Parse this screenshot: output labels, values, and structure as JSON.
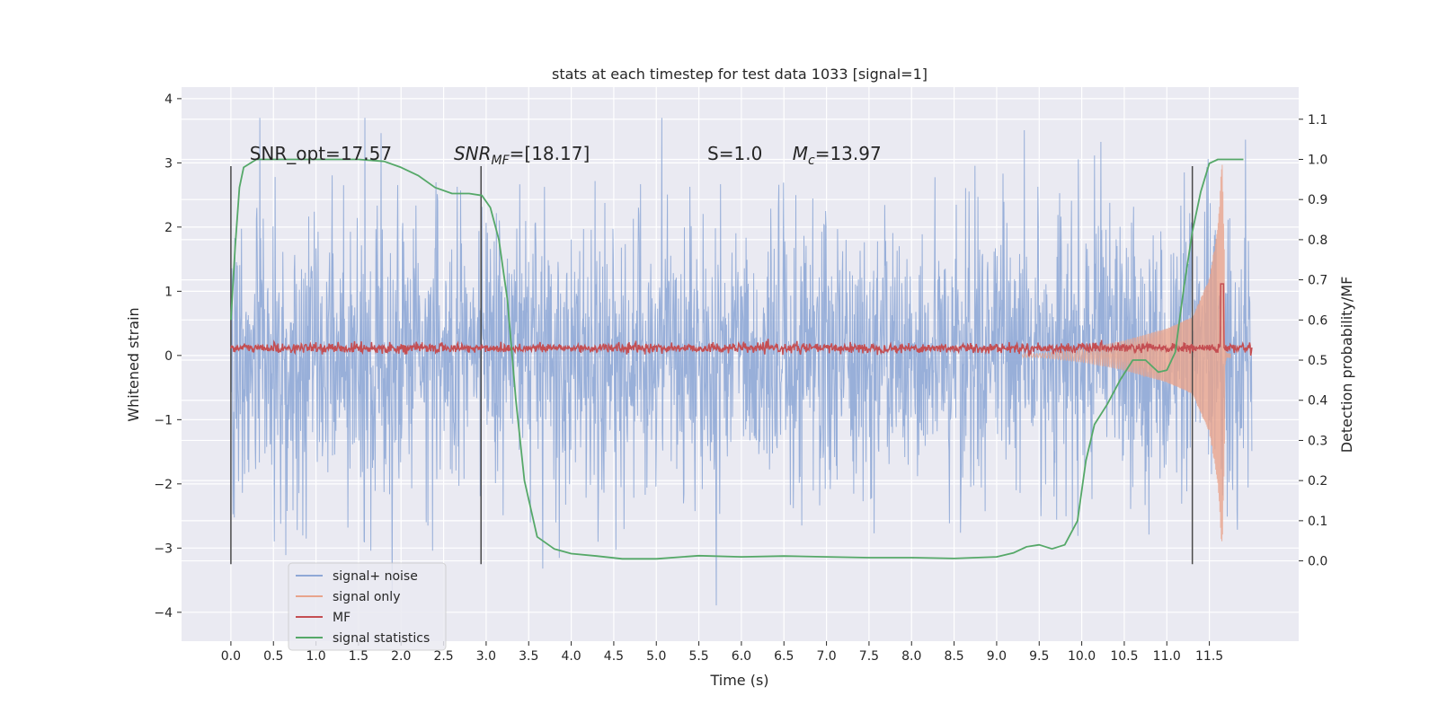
{
  "chart_data": {
    "type": "line",
    "title": "stats at each timestep for test data 1033 [signal=1]",
    "xlabel": "Time (s)",
    "ylabel": "Whitened strain",
    "y2label": "Detection probability/MF",
    "xlim": [
      -0.58,
      12.55
    ],
    "ylim": [
      -4.45,
      4.18
    ],
    "y2lim": [
      -0.2,
      1.18
    ],
    "xticks": [
      "0.0",
      "0.5",
      "1.0",
      "1.5",
      "2.0",
      "2.5",
      "3.0",
      "3.5",
      "4.0",
      "4.5",
      "5.0",
      "5.5",
      "6.0",
      "6.5",
      "7.0",
      "7.5",
      "8.0",
      "8.5",
      "9.0",
      "9.5",
      "10.0",
      "10.5",
      "11.0",
      "11.5"
    ],
    "yticks": [
      "4",
      "3",
      "2",
      "1",
      "0",
      "−1",
      "−2",
      "−3",
      "−4"
    ],
    "y2ticks": [
      "1.1",
      "1.0",
      "0.9",
      "0.8",
      "0.7",
      "0.6",
      "0.5",
      "0.4",
      "0.3",
      "0.2",
      "0.1",
      "0.0"
    ],
    "grid": true,
    "legend_position": "lower-left",
    "annotations": [
      {
        "text": "SNR_opt=17.57",
        "x": 0.22,
        "y": 3.05
      },
      {
        "text": "SNR_MF=[18.17]",
        "x": 2.62,
        "y": 3.05
      },
      {
        "text": "S=1.0",
        "x": 5.6,
        "y": 3.05
      },
      {
        "text": "M_c=13.97",
        "x": 6.6,
        "y": 3.05
      }
    ],
    "vertical_markers": [
      0.0,
      2.94,
      11.3
    ],
    "series": [
      {
        "name": "signal+ noise",
        "color": "#8fa8d6",
        "axis": "left",
        "note": "whitened noise, spans roughly -3.5 to 3.6, t = 0.0 to 12.0 s"
      },
      {
        "name": "signal only",
        "color": "#e8a48c",
        "axis": "left",
        "envelope_x": [
          9.5,
          10.0,
          10.5,
          11.0,
          11.3,
          11.5,
          11.6,
          11.65,
          11.7
        ],
        "envelope_y": [
          0.03,
          0.1,
          0.23,
          0.42,
          0.6,
          1.2,
          2.0,
          3.1,
          0.2
        ]
      },
      {
        "name": "MF",
        "color": "#c44e52",
        "axis": "right",
        "note": "fluctuates around 0.53, spike to 0.69 at 11.65 s"
      },
      {
        "name": "signal statistics",
        "color": "#55a868",
        "axis": "right",
        "x": [
          0.0,
          0.05,
          0.1,
          0.15,
          0.3,
          0.6,
          1.0,
          1.5,
          1.8,
          2.0,
          2.2,
          2.4,
          2.6,
          2.8,
          2.95,
          3.05,
          3.15,
          3.25,
          3.35,
          3.45,
          3.6,
          3.8,
          4.0,
          4.3,
          4.6,
          5.0,
          5.5,
          6.0,
          6.5,
          7.0,
          7.5,
          8.0,
          8.5,
          9.0,
          9.2,
          9.35,
          9.5,
          9.65,
          9.8,
          9.95,
          10.05,
          10.15,
          10.3,
          10.45,
          10.6,
          10.75,
          10.9,
          11.0,
          11.1,
          11.2,
          11.3,
          11.4,
          11.5,
          11.6,
          11.7,
          11.9
        ],
        "values": [
          0.6,
          0.78,
          0.93,
          0.98,
          1.0,
          1.0,
          1.0,
          1.0,
          0.995,
          0.98,
          0.96,
          0.93,
          0.915,
          0.915,
          0.91,
          0.88,
          0.8,
          0.65,
          0.4,
          0.2,
          0.06,
          0.03,
          0.018,
          0.012,
          0.005,
          0.005,
          0.013,
          0.01,
          0.012,
          0.01,
          0.008,
          0.008,
          0.006,
          0.01,
          0.02,
          0.035,
          0.04,
          0.03,
          0.04,
          0.1,
          0.25,
          0.34,
          0.39,
          0.45,
          0.5,
          0.5,
          0.47,
          0.475,
          0.52,
          0.68,
          0.82,
          0.92,
          0.99,
          1.0,
          1.0,
          1.0
        ]
      }
    ]
  }
}
